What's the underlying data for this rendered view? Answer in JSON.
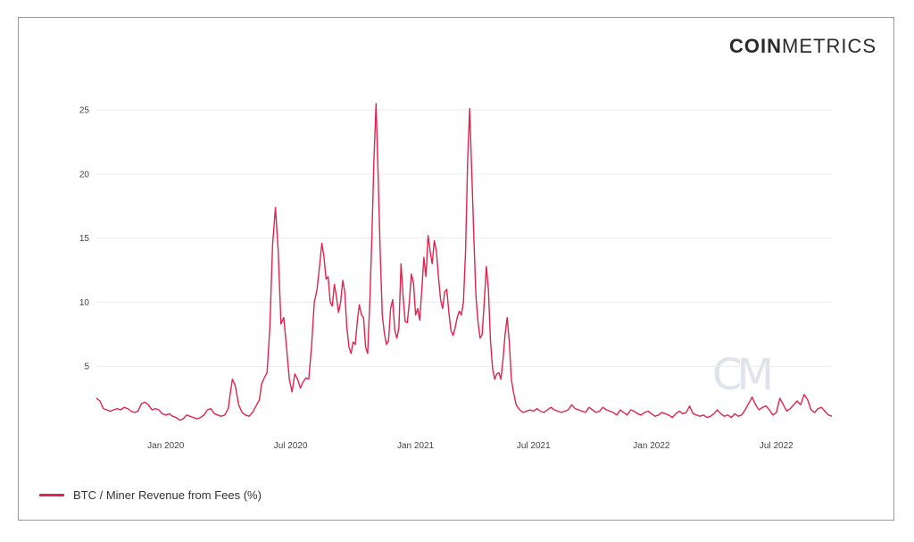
{
  "brand": {
    "bold": "COIN",
    "light": "METRICS",
    "watermark": "CM"
  },
  "colors": {
    "series": "#e1234d",
    "grid": "#ececec",
    "watermark": "#dfe3ec"
  },
  "chart_data": {
    "type": "line",
    "title": "",
    "xlabel": "",
    "ylabel": "",
    "ylim": [
      0,
      25.5
    ],
    "yticks": [
      5,
      10,
      15,
      20,
      25
    ],
    "xticks": [
      {
        "label": "Jan 2020",
        "pos": 0.1
      },
      {
        "label": "Jul 2020",
        "pos": 0.28
      },
      {
        "label": "Jan 2021",
        "pos": 0.46
      },
      {
        "label": "Jul 2021",
        "pos": 0.63
      },
      {
        "label": "Jan 2022",
        "pos": 0.8
      },
      {
        "label": "Jul 2022",
        "pos": 0.98
      }
    ],
    "xrange": [
      0,
      1.06
    ],
    "series": [
      {
        "name": "BTC / Miner Revenue from Fees (%)",
        "points": [
          [
            0.0,
            2.5
          ],
          [
            0.005,
            2.3
          ],
          [
            0.01,
            1.7
          ],
          [
            0.015,
            1.6
          ],
          [
            0.02,
            1.5
          ],
          [
            0.025,
            1.6
          ],
          [
            0.03,
            1.7
          ],
          [
            0.035,
            1.6
          ],
          [
            0.04,
            1.8
          ],
          [
            0.045,
            1.7
          ],
          [
            0.05,
            1.5
          ],
          [
            0.055,
            1.4
          ],
          [
            0.06,
            1.5
          ],
          [
            0.065,
            2.1
          ],
          [
            0.07,
            2.2
          ],
          [
            0.075,
            2.0
          ],
          [
            0.08,
            1.6
          ],
          [
            0.085,
            1.7
          ],
          [
            0.09,
            1.6
          ],
          [
            0.095,
            1.3
          ],
          [
            0.1,
            1.2
          ],
          [
            0.105,
            1.3
          ],
          [
            0.11,
            1.1
          ],
          [
            0.115,
            1.0
          ],
          [
            0.12,
            0.8
          ],
          [
            0.125,
            0.9
          ],
          [
            0.13,
            1.2
          ],
          [
            0.135,
            1.1
          ],
          [
            0.14,
            1.0
          ],
          [
            0.145,
            0.9
          ],
          [
            0.15,
            1.0
          ],
          [
            0.155,
            1.2
          ],
          [
            0.16,
            1.6
          ],
          [
            0.165,
            1.7
          ],
          [
            0.17,
            1.3
          ],
          [
            0.175,
            1.2
          ],
          [
            0.18,
            1.1
          ],
          [
            0.185,
            1.2
          ],
          [
            0.19,
            1.7
          ],
          [
            0.193,
            2.9
          ],
          [
            0.196,
            4.0
          ],
          [
            0.2,
            3.5
          ],
          [
            0.205,
            2.0
          ],
          [
            0.21,
            1.4
          ],
          [
            0.215,
            1.2
          ],
          [
            0.22,
            1.1
          ],
          [
            0.225,
            1.4
          ],
          [
            0.23,
            1.9
          ],
          [
            0.235,
            2.4
          ],
          [
            0.238,
            3.6
          ],
          [
            0.242,
            4.1
          ],
          [
            0.246,
            4.5
          ],
          [
            0.25,
            8.0
          ],
          [
            0.254,
            14.5
          ],
          [
            0.258,
            17.4
          ],
          [
            0.262,
            14.0
          ],
          [
            0.266,
            8.3
          ],
          [
            0.27,
            8.8
          ],
          [
            0.274,
            6.5
          ],
          [
            0.278,
            4.0
          ],
          [
            0.282,
            3.0
          ],
          [
            0.286,
            4.4
          ],
          [
            0.29,
            4.0
          ],
          [
            0.294,
            3.3
          ],
          [
            0.298,
            3.8
          ],
          [
            0.302,
            4.1
          ],
          [
            0.306,
            4.0
          ],
          [
            0.31,
            6.5
          ],
          [
            0.314,
            10.0
          ],
          [
            0.318,
            11.0
          ],
          [
            0.322,
            13.0
          ],
          [
            0.325,
            14.6
          ],
          [
            0.328,
            13.5
          ],
          [
            0.331,
            11.8
          ],
          [
            0.334,
            12.0
          ],
          [
            0.337,
            10.0
          ],
          [
            0.34,
            9.7
          ],
          [
            0.343,
            11.4
          ],
          [
            0.346,
            10.4
          ],
          [
            0.349,
            9.2
          ],
          [
            0.352,
            10.0
          ],
          [
            0.355,
            11.7
          ],
          [
            0.358,
            10.8
          ],
          [
            0.361,
            8.0
          ],
          [
            0.364,
            6.5
          ],
          [
            0.367,
            6.0
          ],
          [
            0.37,
            6.9
          ],
          [
            0.373,
            6.7
          ],
          [
            0.376,
            8.5
          ],
          [
            0.379,
            9.8
          ],
          [
            0.382,
            9.0
          ],
          [
            0.385,
            8.8
          ],
          [
            0.388,
            6.5
          ],
          [
            0.391,
            6.0
          ],
          [
            0.394,
            10.0
          ],
          [
            0.397,
            15.0
          ],
          [
            0.4,
            21.0
          ],
          [
            0.403,
            25.5
          ],
          [
            0.406,
            20.0
          ],
          [
            0.409,
            14.0
          ],
          [
            0.412,
            9.0
          ],
          [
            0.415,
            7.6
          ],
          [
            0.418,
            6.7
          ],
          [
            0.421,
            7.0
          ],
          [
            0.424,
            9.5
          ],
          [
            0.427,
            10.2
          ],
          [
            0.43,
            7.8
          ],
          [
            0.433,
            7.2
          ],
          [
            0.436,
            8.0
          ],
          [
            0.439,
            13.0
          ],
          [
            0.442,
            10.5
          ],
          [
            0.445,
            8.5
          ],
          [
            0.448,
            8.4
          ],
          [
            0.451,
            10.0
          ],
          [
            0.454,
            12.2
          ],
          [
            0.457,
            11.5
          ],
          [
            0.46,
            9.0
          ],
          [
            0.463,
            9.5
          ],
          [
            0.466,
            8.6
          ],
          [
            0.469,
            11.0
          ],
          [
            0.472,
            13.5
          ],
          [
            0.475,
            12.0
          ],
          [
            0.478,
            15.2
          ],
          [
            0.481,
            14.0
          ],
          [
            0.484,
            13.0
          ],
          [
            0.487,
            14.8
          ],
          [
            0.49,
            14.0
          ],
          [
            0.493,
            12.0
          ],
          [
            0.496,
            10.2
          ],
          [
            0.499,
            9.5
          ],
          [
            0.502,
            10.8
          ],
          [
            0.505,
            11.0
          ],
          [
            0.508,
            9.2
          ],
          [
            0.511,
            7.8
          ],
          [
            0.514,
            7.4
          ],
          [
            0.517,
            8.0
          ],
          [
            0.52,
            8.8
          ],
          [
            0.523,
            9.3
          ],
          [
            0.526,
            9.0
          ],
          [
            0.529,
            10.0
          ],
          [
            0.532,
            14.0
          ],
          [
            0.535,
            21.0
          ],
          [
            0.538,
            25.1
          ],
          [
            0.541,
            20.0
          ],
          [
            0.544,
            15.0
          ],
          [
            0.547,
            10.5
          ],
          [
            0.55,
            8.5
          ],
          [
            0.553,
            7.2
          ],
          [
            0.556,
            7.5
          ],
          [
            0.559,
            10.0
          ],
          [
            0.562,
            12.8
          ],
          [
            0.565,
            11.0
          ],
          [
            0.568,
            7.0
          ],
          [
            0.571,
            4.8
          ],
          [
            0.574,
            4.0
          ],
          [
            0.577,
            4.4
          ],
          [
            0.58,
            4.5
          ],
          [
            0.583,
            4.0
          ],
          [
            0.586,
            5.5
          ],
          [
            0.589,
            7.5
          ],
          [
            0.592,
            8.8
          ],
          [
            0.595,
            7.0
          ],
          [
            0.598,
            4.0
          ],
          [
            0.601,
            3.0
          ],
          [
            0.605,
            2.0
          ],
          [
            0.61,
            1.6
          ],
          [
            0.615,
            1.4
          ],
          [
            0.62,
            1.5
          ],
          [
            0.625,
            1.6
          ],
          [
            0.63,
            1.5
          ],
          [
            0.635,
            1.7
          ],
          [
            0.64,
            1.5
          ],
          [
            0.645,
            1.4
          ],
          [
            0.65,
            1.6
          ],
          [
            0.655,
            1.8
          ],
          [
            0.66,
            1.6
          ],
          [
            0.665,
            1.5
          ],
          [
            0.67,
            1.4
          ],
          [
            0.675,
            1.5
          ],
          [
            0.68,
            1.6
          ],
          [
            0.685,
            2.0
          ],
          [
            0.69,
            1.7
          ],
          [
            0.695,
            1.6
          ],
          [
            0.7,
            1.5
          ],
          [
            0.705,
            1.4
          ],
          [
            0.71,
            1.8
          ],
          [
            0.715,
            1.6
          ],
          [
            0.72,
            1.4
          ],
          [
            0.725,
            1.5
          ],
          [
            0.73,
            1.8
          ],
          [
            0.735,
            1.6
          ],
          [
            0.74,
            1.5
          ],
          [
            0.745,
            1.4
          ],
          [
            0.75,
            1.2
          ],
          [
            0.755,
            1.6
          ],
          [
            0.76,
            1.4
          ],
          [
            0.765,
            1.2
          ],
          [
            0.77,
            1.6
          ],
          [
            0.775,
            1.5
          ],
          [
            0.78,
            1.3
          ],
          [
            0.785,
            1.2
          ],
          [
            0.79,
            1.4
          ],
          [
            0.795,
            1.5
          ],
          [
            0.8,
            1.3
          ],
          [
            0.805,
            1.1
          ],
          [
            0.81,
            1.2
          ],
          [
            0.815,
            1.4
          ],
          [
            0.82,
            1.3
          ],
          [
            0.825,
            1.2
          ],
          [
            0.83,
            1.0
          ],
          [
            0.835,
            1.3
          ],
          [
            0.84,
            1.5
          ],
          [
            0.845,
            1.3
          ],
          [
            0.85,
            1.4
          ],
          [
            0.855,
            1.9
          ],
          [
            0.86,
            1.3
          ],
          [
            0.865,
            1.2
          ],
          [
            0.87,
            1.1
          ],
          [
            0.875,
            1.2
          ],
          [
            0.88,
            1.0
          ],
          [
            0.885,
            1.1
          ],
          [
            0.89,
            1.3
          ],
          [
            0.895,
            1.6
          ],
          [
            0.9,
            1.3
          ],
          [
            0.905,
            1.1
          ],
          [
            0.91,
            1.2
          ],
          [
            0.915,
            1.0
          ],
          [
            0.92,
            1.3
          ],
          [
            0.925,
            1.1
          ],
          [
            0.93,
            1.2
          ],
          [
            0.935,
            1.6
          ],
          [
            0.94,
            2.1
          ],
          [
            0.945,
            2.6
          ],
          [
            0.95,
            2.0
          ],
          [
            0.955,
            1.6
          ],
          [
            0.96,
            1.8
          ],
          [
            0.965,
            1.9
          ],
          [
            0.97,
            1.6
          ],
          [
            0.975,
            1.2
          ],
          [
            0.98,
            1.4
          ],
          [
            0.985,
            2.5
          ],
          [
            0.99,
            2.0
          ],
          [
            0.995,
            1.5
          ],
          [
            1.0,
            1.7
          ],
          [
            1.005,
            2.0
          ],
          [
            1.01,
            2.3
          ],
          [
            1.015,
            2.0
          ],
          [
            1.02,
            2.8
          ],
          [
            1.025,
            2.4
          ],
          [
            1.03,
            1.6
          ],
          [
            1.035,
            1.4
          ],
          [
            1.04,
            1.7
          ],
          [
            1.045,
            1.8
          ],
          [
            1.05,
            1.5
          ],
          [
            1.055,
            1.2
          ],
          [
            1.06,
            1.1
          ]
        ]
      }
    ],
    "legend": {
      "label": "BTC / Miner Revenue from Fees (%)",
      "placement": "bottom-left"
    }
  }
}
